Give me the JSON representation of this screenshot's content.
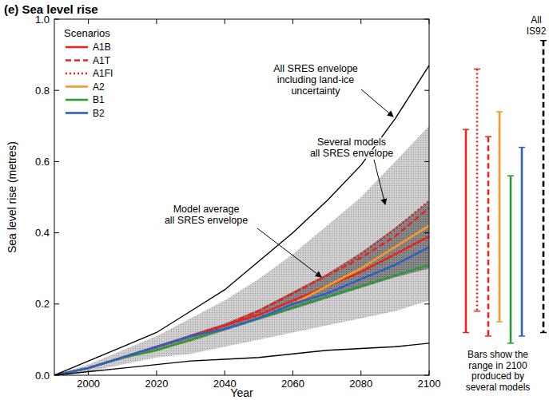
{
  "chart_data": {
    "type": "line",
    "title": "(e) Sea level rise",
    "x_label": "Year",
    "y_label": "Sea level rise (metres)",
    "x": [
      1990,
      2000,
      2010,
      2020,
      2030,
      2040,
      2050,
      2060,
      2070,
      2080,
      2090,
      2100
    ],
    "xlim": [
      1990,
      2100
    ],
    "xticks": [
      2000,
      2020,
      2040,
      2060,
      2080,
      2100
    ],
    "ylim": [
      0,
      1
    ],
    "yticks": [
      {
        "value": 0,
        "label": "0.0"
      },
      {
        "value": 0.2,
        "label": "0.2"
      },
      {
        "value": 0.4,
        "label": "0.4"
      },
      {
        "value": 0.6,
        "label": "0.6"
      },
      {
        "value": 0.8,
        "label": "0.8"
      },
      {
        "value": 1,
        "label": "1.0"
      }
    ],
    "legend": "top-left",
    "legend_title": "Scenarios",
    "series": [
      {
        "name": "A1B",
        "color": "#e8241f",
        "line_style": "solid",
        "values": [
          0,
          0.02,
          0.05,
          0.08,
          0.11,
          0.14,
          0.17,
          0.21,
          0.25,
          0.29,
          0.34,
          0.39
        ]
      },
      {
        "name": "A1T",
        "color": "#e8241f",
        "line_style": "dashed",
        "values": [
          0,
          0.02,
          0.05,
          0.08,
          0.11,
          0.14,
          0.18,
          0.23,
          0.28,
          0.33,
          0.39,
          0.47
        ]
      },
      {
        "name": "A1FI",
        "color": "#e8241f",
        "line_style": "dotted",
        "values": [
          0,
          0.02,
          0.05,
          0.08,
          0.11,
          0.14,
          0.18,
          0.23,
          0.28,
          0.34,
          0.41,
          0.49
        ]
      },
      {
        "name": "A2",
        "color": "#f39a2c",
        "line_style": "solid",
        "values": [
          0,
          0.02,
          0.05,
          0.07,
          0.1,
          0.13,
          0.16,
          0.2,
          0.25,
          0.3,
          0.36,
          0.42
        ]
      },
      {
        "name": "B1",
        "color": "#2a9a3a",
        "line_style": "solid",
        "values": [
          0,
          0.02,
          0.05,
          0.07,
          0.1,
          0.13,
          0.16,
          0.19,
          0.22,
          0.25,
          0.28,
          0.31
        ]
      },
      {
        "name": "B2",
        "color": "#2a62c8",
        "line_style": "solid",
        "values": [
          0,
          0.02,
          0.05,
          0.08,
          0.11,
          0.13,
          0.16,
          0.2,
          0.23,
          0.27,
          0.31,
          0.36
        ]
      }
    ],
    "envelopes": [
      {
        "type": "line",
        "color": "#000000",
        "label": [
          "All SRES envelope",
          "including land-ice",
          "uncertainty"
        ],
        "upper": [
          0,
          0.04,
          0.08,
          0.12,
          0.18,
          0.24,
          0.32,
          0.4,
          0.49,
          0.59,
          0.72,
          0.87
        ],
        "lower": [
          0,
          0.01,
          0.02,
          0.03,
          0.04,
          0.045,
          0.05,
          0.06,
          0.07,
          0.075,
          0.08,
          0.09
        ]
      },
      {
        "type": "area",
        "color": "#d2d2d2",
        "label": [
          "Several models",
          "all SRES envelope"
        ],
        "upper": [
          0,
          0.03,
          0.07,
          0.11,
          0.16,
          0.21,
          0.27,
          0.34,
          0.42,
          0.5,
          0.6,
          0.7
        ],
        "lower": [
          0,
          0.01,
          0.03,
          0.05,
          0.06,
          0.08,
          0.1,
          0.12,
          0.14,
          0.16,
          0.18,
          0.21
        ]
      },
      {
        "type": "area",
        "color": "#8c8c8c",
        "label": [
          "Model average",
          "all SRES envelope"
        ],
        "upper": [
          0,
          0.02,
          0.05,
          0.08,
          0.115,
          0.145,
          0.185,
          0.235,
          0.285,
          0.345,
          0.415,
          0.49
        ],
        "lower": [
          0,
          0.02,
          0.045,
          0.07,
          0.095,
          0.125,
          0.155,
          0.185,
          0.215,
          0.245,
          0.275,
          0.3
        ]
      }
    ],
    "ranges_2100": {
      "note": [
        "Bars show the",
        "range in 2100",
        "produced by",
        "several models"
      ],
      "bars": [
        {
          "color": "#e8241f",
          "line_style": "solid",
          "low": 0.12,
          "high": 0.69
        },
        {
          "color": "#e8241f",
          "line_style": "dotted",
          "low": 0.18,
          "high": 0.86
        },
        {
          "color": "#e8241f",
          "line_style": "dashed",
          "low": 0.11,
          "high": 0.67
        },
        {
          "color": "#f39a2c",
          "line_style": "solid",
          "low": 0.15,
          "high": 0.74
        },
        {
          "color": "#2a9a3a",
          "line_style": "solid",
          "low": 0.09,
          "high": 0.56
        },
        {
          "color": "#2a62c8",
          "line_style": "solid",
          "low": 0.11,
          "high": 0.64
        },
        {
          "color": "#000000",
          "line_style": "dashed",
          "low": 0.12,
          "high": 0.94,
          "label": [
            "All",
            "IS92"
          ]
        }
      ]
    }
  }
}
